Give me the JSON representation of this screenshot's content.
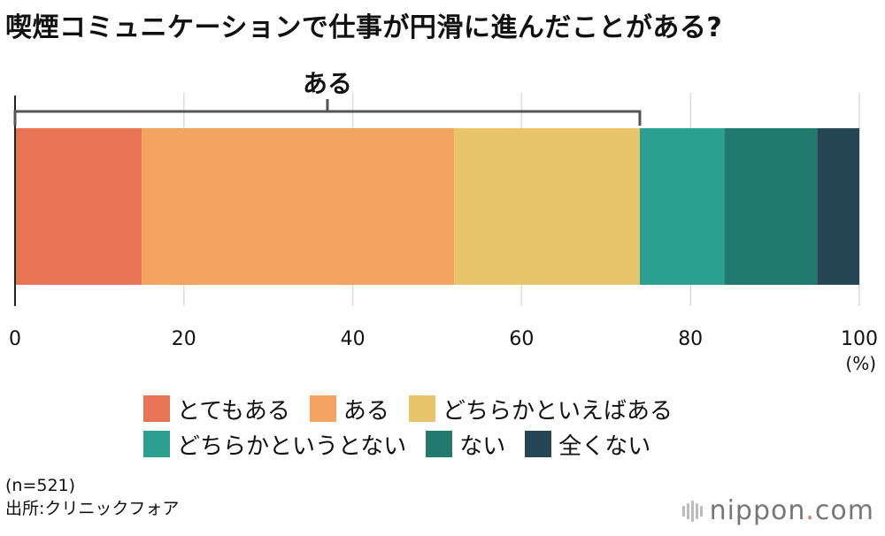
{
  "title": "喫煙コミュニケーションで仕事が円滑に進んだことがある?",
  "chart_data": {
    "type": "bar",
    "orientation": "horizontal-stacked-100",
    "unit": "(%)",
    "xlim": [
      0,
      100
    ],
    "ticks": [
      "0",
      "20",
      "40",
      "60",
      "80",
      "100"
    ],
    "grid": true,
    "series": [
      {
        "name": "とてもある",
        "value": 15,
        "color": "#e87355"
      },
      {
        "name": "ある",
        "value": 37,
        "color": "#f2a460"
      },
      {
        "name": "どちらかといえばある",
        "value": 22,
        "color": "#e8c46c"
      },
      {
        "name": "どちらかというとない",
        "value": 10,
        "color": "#2ba092"
      },
      {
        "name": "ない",
        "value": 11,
        "color": "#217a6d"
      },
      {
        "name": "全くない",
        "value": 5,
        "color": "#244655"
      }
    ],
    "annotation": {
      "label": "ある",
      "from": 0,
      "to": 74
    }
  },
  "note": {
    "n": "(n=521)",
    "source": "出所:クリニックフォア"
  },
  "logo": {
    "main": "nippon",
    "dot": ".",
    "suffix": "com"
  }
}
